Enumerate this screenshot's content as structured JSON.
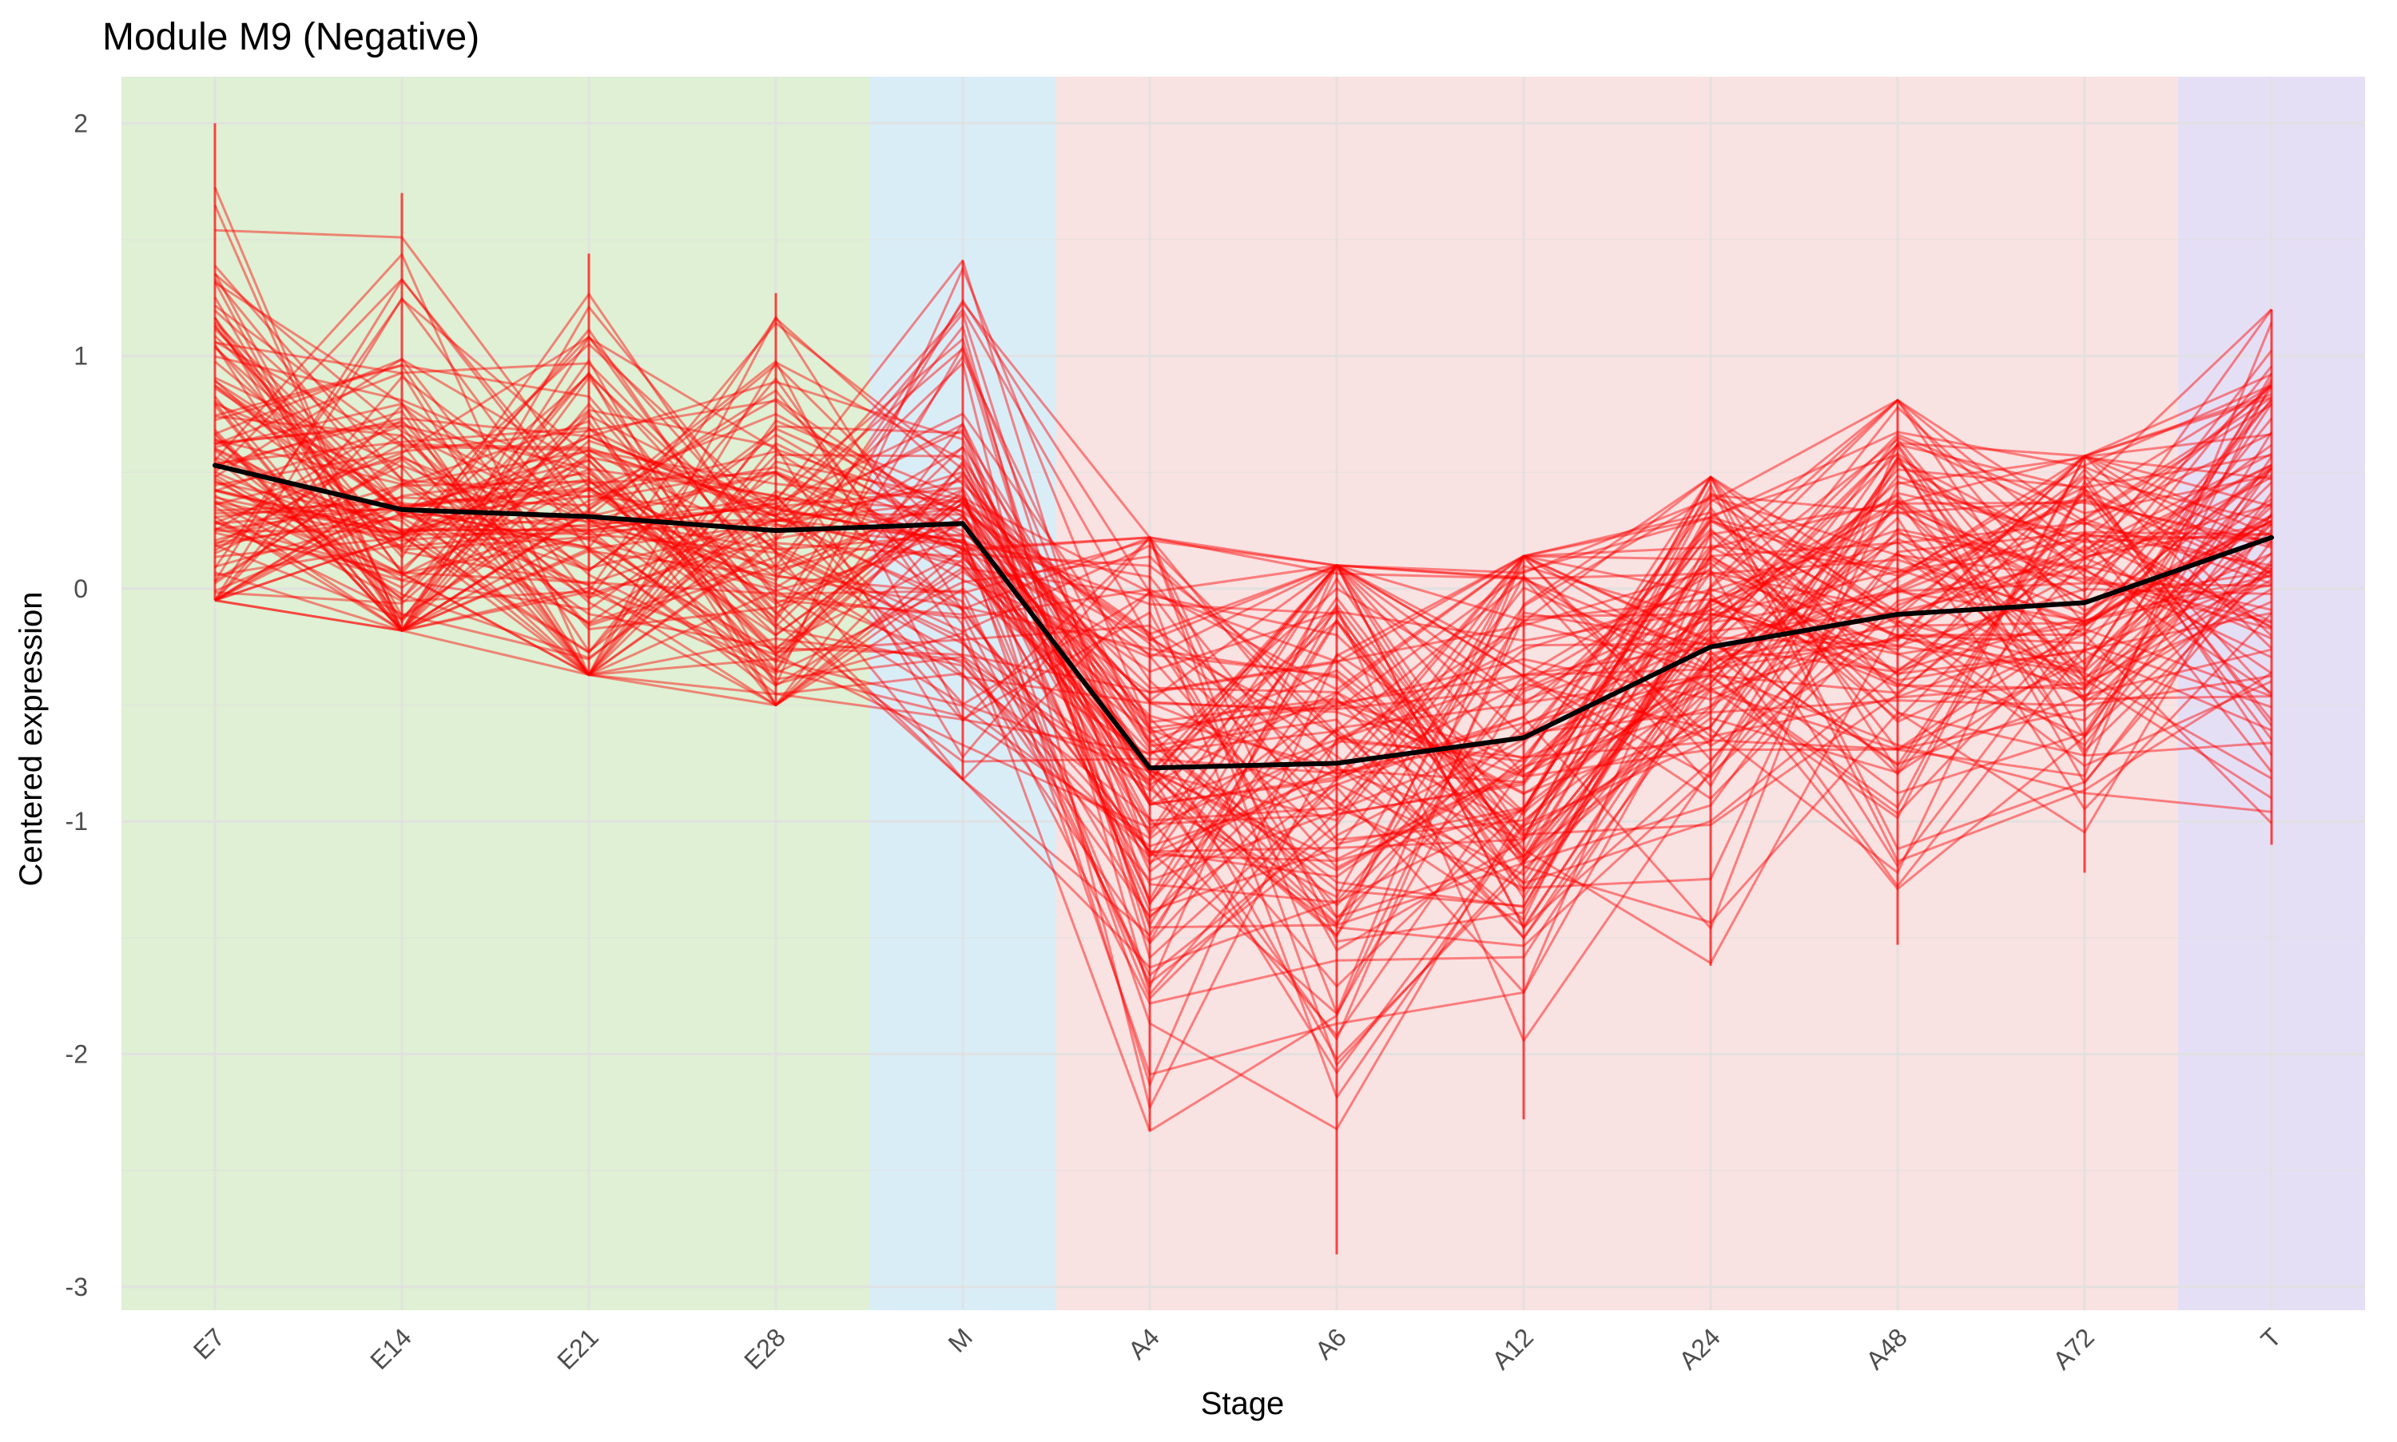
{
  "chart_data": {
    "type": "line",
    "title": "Module M9 (Negative)",
    "xlabel": "Stage",
    "ylabel": "Centered expression",
    "categories": [
      "E7",
      "E14",
      "E21",
      "E28",
      "M",
      "A4",
      "A6",
      "A12",
      "A24",
      "A48",
      "A72",
      "T"
    ],
    "ylim": [
      -3.1,
      2.2
    ],
    "yticks": [
      "2",
      "1",
      "0",
      "-1",
      "-2",
      "-3"
    ],
    "ytick_values": [
      2,
      1,
      0,
      -1,
      -2,
      -3
    ],
    "grid": true,
    "x_tick_rotation": -45,
    "background_bands": [
      {
        "from": "E7",
        "to": "E28",
        "color": "#dff0d4"
      },
      {
        "from": "M",
        "to": "M",
        "color": "#d9edf7"
      },
      {
        "from": "A4",
        "to": "A72",
        "color": "#f9e2e2"
      },
      {
        "from": "T",
        "to": "T",
        "color": "#e5dff5"
      }
    ],
    "gene_line_color": "#ff0000",
    "gene_line_opacity": 0.45,
    "gene_line_count": 120,
    "gene_value_ranges": [
      {
        "stage": "E7",
        "min": -0.05,
        "max": 2.0,
        "center": 0.53
      },
      {
        "stage": "E14",
        "min": -0.18,
        "max": 1.7,
        "center": 0.34
      },
      {
        "stage": "E21",
        "min": -0.37,
        "max": 1.44,
        "center": 0.31
      },
      {
        "stage": "E28",
        "min": -0.5,
        "max": 1.27,
        "center": 0.25
      },
      {
        "stage": "M",
        "min": -0.82,
        "max": 1.41,
        "center": 0.28
      },
      {
        "stage": "A4",
        "min": -2.33,
        "max": 0.22,
        "center": -0.77
      },
      {
        "stage": "A6",
        "min": -2.86,
        "max": 0.1,
        "center": -0.75
      },
      {
        "stage": "A12",
        "min": -2.28,
        "max": 0.14,
        "center": -0.64
      },
      {
        "stage": "A24",
        "min": -1.62,
        "max": 0.48,
        "center": -0.25
      },
      {
        "stage": "A48",
        "min": -1.53,
        "max": 0.81,
        "center": -0.11
      },
      {
        "stage": "A72",
        "min": -1.22,
        "max": 0.57,
        "center": -0.06
      },
      {
        "stage": "T",
        "min": -1.1,
        "max": 1.2,
        "center": 0.22
      }
    ],
    "series": [
      {
        "values": [
          0.53,
          0.34,
          0.31,
          0.25,
          0.28,
          -0.77,
          -0.75,
          -0.64,
          -0.25,
          -0.11,
          -0.06,
          0.22
        ],
        "color": "#000000"
      }
    ]
  }
}
